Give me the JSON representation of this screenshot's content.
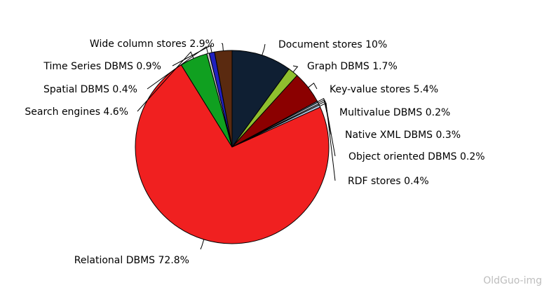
{
  "chart_data": {
    "type": "pie",
    "start_angle_deg": 0,
    "direction": "clockwise",
    "slices": [
      {
        "label": "Document stores 10%",
        "name": "Document stores",
        "value": 10,
        "color": "#0f1f33"
      },
      {
        "label": "Graph DBMS 1.7%",
        "name": "Graph DBMS",
        "value": 1.7,
        "color": "#8fbf2e"
      },
      {
        "label": "Key-value stores 5.4%",
        "name": "Key-value stores",
        "value": 5.4,
        "color": "#8b0000"
      },
      {
        "label": "Multivalue DBMS 0.2%",
        "name": "Multivalue DBMS",
        "value": 0.2,
        "color": "#9ab0c8"
      },
      {
        "label": "Native XML DBMS 0.3%",
        "name": "Native XML DBMS",
        "value": 0.3,
        "color": "#c8d8e8"
      },
      {
        "label": "Object oriented DBMS 0.2%",
        "name": "Object oriented DBMS",
        "value": 0.2,
        "color": "#e0e0e0"
      },
      {
        "label": "RDF stores 0.4%",
        "name": "RDF stores",
        "value": 0.4,
        "color": "#b0c4de"
      },
      {
        "label": "Relational DBMS 72.8%",
        "name": "Relational DBMS",
        "value": 72.8,
        "color": "#f02020"
      },
      {
        "label": "Search engines 4.6%",
        "name": "Search engines",
        "value": 4.6,
        "color": "#10a020"
      },
      {
        "label": "Spatial DBMS 0.4%",
        "name": "Spatial DBMS",
        "value": 0.4,
        "color": "#d0d0d0"
      },
      {
        "label": "Time Series DBMS 0.9%",
        "name": "Time Series DBMS",
        "value": 0.9,
        "color": "#2020c0"
      },
      {
        "label": "Wide column stores 2.9%",
        "name": "Wide column stores",
        "value": 2.9,
        "color": "#5a2a10"
      }
    ]
  },
  "watermark": "OldGuo-img"
}
